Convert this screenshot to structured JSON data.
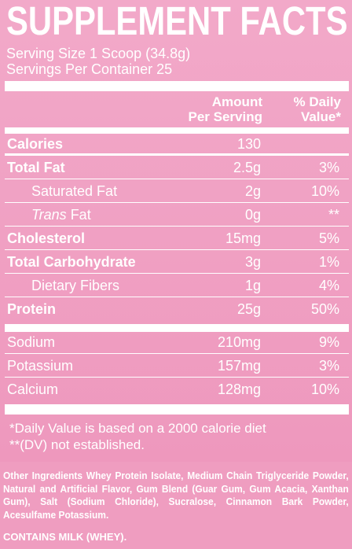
{
  "title": "SUPPLEMENT FACTS",
  "serving_size": "Serving Size 1 Scoop (34.8g)",
  "servings_per_container": "Servings Per Container 25",
  "headers": {
    "amount_line1": "Amount",
    "amount_line2": "Per Serving",
    "dv_line1": "% Daily",
    "dv_line2": "Value*"
  },
  "rows": [
    {
      "name": "Calories",
      "amount": "130",
      "dv": ""
    },
    {
      "name": "Total Fat",
      "amount": "2.5g",
      "dv": "3%"
    },
    {
      "name": "Saturated Fat",
      "amount": "2g",
      "dv": "10%"
    },
    {
      "name_italic": "Trans",
      "name": " Fat",
      "amount": "0g",
      "dv": "**"
    },
    {
      "name": "Cholesterol",
      "amount": "15mg",
      "dv": "5%"
    },
    {
      "name": "Total Carbohydrate",
      "amount": "3g",
      "dv": "1%"
    },
    {
      "name": "Dietary Fibers",
      "amount": "1g",
      "dv": "4%"
    },
    {
      "name": "Protein",
      "amount": "25g",
      "dv": "50%"
    },
    {
      "name": "Sodium",
      "amount": "210mg",
      "dv": "9%"
    },
    {
      "name": "Potassium",
      "amount": "157mg",
      "dv": "3%"
    },
    {
      "name": "Calcium",
      "amount": "128mg",
      "dv": "10%"
    }
  ],
  "footnotes": {
    "line1": "*Daily Value is based on a 2000 calorie diet",
    "line2": "**(DV) not established."
  },
  "ingredients": {
    "label": "Other Ingredients",
    "text": " Whey Protein Isolate, Medium Chain Triglyceride Powder, Natural and Artificial Flavor, Gum Blend (Guar Gum, Gum Acacia, Xanthan Gum), Salt (Sodium Chloride), Sucralose, Cinnamon Bark Powder, Acesulfame Potassium."
  },
  "allergen": "CONTAINS MILK (WHEY).",
  "colors": {
    "background": "#ef9dc0",
    "text": "#ffffff"
  }
}
